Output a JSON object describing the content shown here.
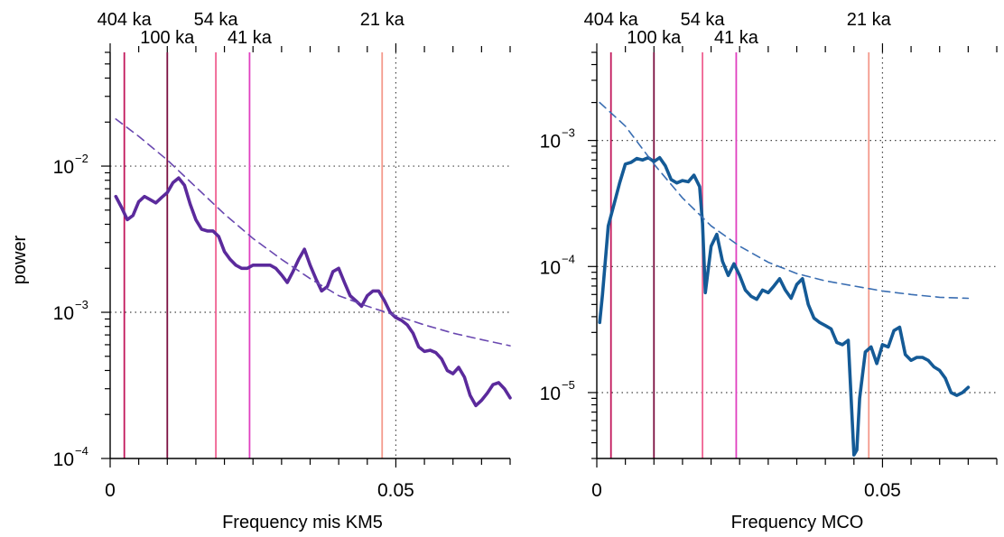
{
  "chart_data": [
    {
      "type": "line",
      "xlabel": "Frequency mis KM5",
      "ylabel": "power",
      "xlim": [
        0,
        0.07
      ],
      "ylim": [
        0.0001,
        0.06
      ],
      "y_scale": "log",
      "x_ticks": [
        {
          "value": 0,
          "label": "0"
        },
        {
          "value": 0.05,
          "label": "0.05"
        }
      ],
      "y_ticks": [
        {
          "value": 0.0001,
          "label": "10",
          "exp": "−4"
        },
        {
          "value": 0.001,
          "label": "10",
          "exp": "−3"
        },
        {
          "value": 0.01,
          "label": "10",
          "exp": "−2"
        }
      ],
      "grid": {
        "x": [
          0.05
        ],
        "y": [
          0.001,
          0.01
        ],
        "style": "dotted"
      },
      "period_lines": [
        {
          "label": "404 ka",
          "freq": 0.00248,
          "color": "#c2185b",
          "row": "top"
        },
        {
          "label": "100 ka",
          "freq": 0.01,
          "color": "#7b1040",
          "row": "low"
        },
        {
          "label": "54 ka",
          "freq": 0.0185,
          "color": "#f06292",
          "row": "top"
        },
        {
          "label": "41 ka",
          "freq": 0.0244,
          "color": "#e040c0",
          "row": "low"
        },
        {
          "label": "21 ka",
          "freq": 0.0476,
          "color": "#f4998c",
          "row": "top"
        }
      ],
      "series": [
        {
          "style": "solid",
          "color": "#5b2a9c",
          "x": [
            0.001,
            0.002,
            0.003,
            0.004,
            0.005,
            0.006,
            0.007,
            0.008,
            0.009,
            0.01,
            0.011,
            0.012,
            0.013,
            0.014,
            0.015,
            0.016,
            0.017,
            0.018,
            0.019,
            0.02,
            0.021,
            0.022,
            0.023,
            0.024,
            0.025,
            0.026,
            0.027,
            0.028,
            0.029,
            0.03,
            0.031,
            0.032,
            0.033,
            0.034,
            0.035,
            0.036,
            0.037,
            0.038,
            0.039,
            0.04,
            0.041,
            0.042,
            0.043,
            0.044,
            0.045,
            0.046,
            0.047,
            0.048,
            0.049,
            0.05,
            0.051,
            0.052,
            0.053,
            0.054,
            0.055,
            0.056,
            0.057,
            0.058,
            0.059,
            0.06,
            0.061,
            0.062,
            0.063,
            0.064,
            0.065,
            0.066,
            0.067,
            0.068,
            0.069,
            0.07
          ],
          "y": [
            0.0062,
            0.0052,
            0.0043,
            0.0046,
            0.0057,
            0.0062,
            0.0059,
            0.0056,
            0.0061,
            0.0066,
            0.0077,
            0.0083,
            0.0074,
            0.0055,
            0.0043,
            0.0037,
            0.0036,
            0.0036,
            0.0033,
            0.0026,
            0.0023,
            0.0021,
            0.002,
            0.002,
            0.0021,
            0.0021,
            0.0021,
            0.0021,
            0.002,
            0.0018,
            0.0016,
            0.0019,
            0.0023,
            0.0027,
            0.0021,
            0.0017,
            0.0014,
            0.0015,
            0.0019,
            0.002,
            0.0016,
            0.0013,
            0.0012,
            0.0011,
            0.0013,
            0.0014,
            0.0014,
            0.0012,
            0.001,
            0.00092,
            0.00088,
            0.00082,
            0.00072,
            0.00058,
            0.00054,
            0.00055,
            0.00053,
            0.00048,
            0.0004,
            0.00038,
            0.00042,
            0.00036,
            0.00027,
            0.00023,
            0.00025,
            0.00028,
            0.00032,
            0.00033,
            0.0003,
            0.00026
          ]
        },
        {
          "style": "dashed",
          "color": "#6a48b0",
          "x": [
            0.001,
            0.005,
            0.01,
            0.015,
            0.02,
            0.025,
            0.03,
            0.035,
            0.04,
            0.045,
            0.05,
            0.055,
            0.06,
            0.065,
            0.07
          ],
          "y": [
            0.021,
            0.016,
            0.011,
            0.0072,
            0.0047,
            0.0032,
            0.0023,
            0.0017,
            0.0013,
            0.0011,
            0.00095,
            0.00082,
            0.00072,
            0.00065,
            0.00059
          ]
        }
      ]
    },
    {
      "type": "line",
      "xlabel": "Frequency MCO",
      "ylabel": "",
      "xlim": [
        0,
        0.07
      ],
      "ylim": [
        3e-06,
        0.005
      ],
      "y_scale": "log",
      "x_ticks": [
        {
          "value": 0,
          "label": "0"
        },
        {
          "value": 0.05,
          "label": "0.05"
        }
      ],
      "y_ticks": [
        {
          "value": 1e-05,
          "label": "10",
          "exp": "−5"
        },
        {
          "value": 0.0001,
          "label": "10",
          "exp": "−4"
        },
        {
          "value": 0.001,
          "label": "10",
          "exp": "−3"
        }
      ],
      "grid": {
        "x": [
          0.05
        ],
        "y": [
          1e-05,
          0.0001,
          0.001
        ],
        "style": "dotted"
      },
      "period_lines": [
        {
          "label": "404 ka",
          "freq": 0.00248,
          "color": "#c2185b",
          "row": "top"
        },
        {
          "label": "100 ka",
          "freq": 0.01,
          "color": "#7b1040",
          "row": "low"
        },
        {
          "label": "54 ka",
          "freq": 0.0185,
          "color": "#f06292",
          "row": "top"
        },
        {
          "label": "41 ka",
          "freq": 0.0244,
          "color": "#e040c0",
          "row": "low"
        },
        {
          "label": "21 ka",
          "freq": 0.0476,
          "color": "#f4998c",
          "row": "top"
        }
      ],
      "series": [
        {
          "style": "solid",
          "color": "#145a96",
          "x": [
            0.0005,
            0.001,
            0.002,
            0.003,
            0.004,
            0.005,
            0.006,
            0.007,
            0.008,
            0.009,
            0.01,
            0.011,
            0.012,
            0.013,
            0.014,
            0.015,
            0.016,
            0.017,
            0.018,
            0.0185,
            0.019,
            0.02,
            0.021,
            0.022,
            0.023,
            0.024,
            0.025,
            0.026,
            0.027,
            0.028,
            0.029,
            0.03,
            0.031,
            0.032,
            0.033,
            0.034,
            0.035,
            0.036,
            0.037,
            0.038,
            0.039,
            0.04,
            0.041,
            0.042,
            0.043,
            0.044,
            0.045,
            0.0455,
            0.046,
            0.047,
            0.048,
            0.049,
            0.05,
            0.051,
            0.052,
            0.053,
            0.054,
            0.055,
            0.056,
            0.057,
            0.058,
            0.059,
            0.06,
            0.061,
            0.062,
            0.063,
            0.064,
            0.065
          ],
          "y": [
            3.6e-05,
            6e-05,
            0.00021,
            0.00031,
            0.00046,
            0.00065,
            0.00067,
            0.00072,
            0.0007,
            0.00073,
            0.00068,
            0.00073,
            0.00063,
            0.00049,
            0.00046,
            0.00048,
            0.00047,
            0.00053,
            0.00043,
            0.00022,
            6.2e-05,
            0.000145,
            0.00018,
            0.00011,
            8.5e-05,
            0.000105,
            8.5e-05,
            6.5e-05,
            5.8e-05,
            5.5e-05,
            6.5e-05,
            6.2e-05,
            7e-05,
            8e-05,
            6.5e-05,
            5.6e-05,
            7.2e-05,
            8e-05,
            5e-05,
            3.9e-05,
            3.6e-05,
            3.4e-05,
            3.2e-05,
            2.5e-05,
            2.4e-05,
            2.6e-05,
            3.2e-06,
            3.5e-06,
            9e-06,
            2.1e-05,
            2.3e-05,
            1.7e-05,
            2.4e-05,
            2.3e-05,
            3.1e-05,
            3.3e-05,
            2e-05,
            1.8e-05,
            1.9e-05,
            1.9e-05,
            1.8e-05,
            1.6e-05,
            1.5e-05,
            1.3e-05,
            1e-05,
            9.5e-06,
            1e-05,
            1.1e-05
          ]
        },
        {
          "style": "dashed",
          "color": "#3a6eb2",
          "x": [
            0.0005,
            0.005,
            0.01,
            0.015,
            0.02,
            0.025,
            0.03,
            0.035,
            0.04,
            0.045,
            0.05,
            0.055,
            0.06,
            0.065
          ],
          "y": [
            0.002,
            0.0013,
            0.00065,
            0.00035,
            0.00021,
            0.000145,
            0.000108,
            8.8e-05,
            7.7e-05,
            7e-05,
            6.4e-05,
            6e-05,
            5.7e-05,
            5.6e-05
          ]
        }
      ]
    }
  ]
}
